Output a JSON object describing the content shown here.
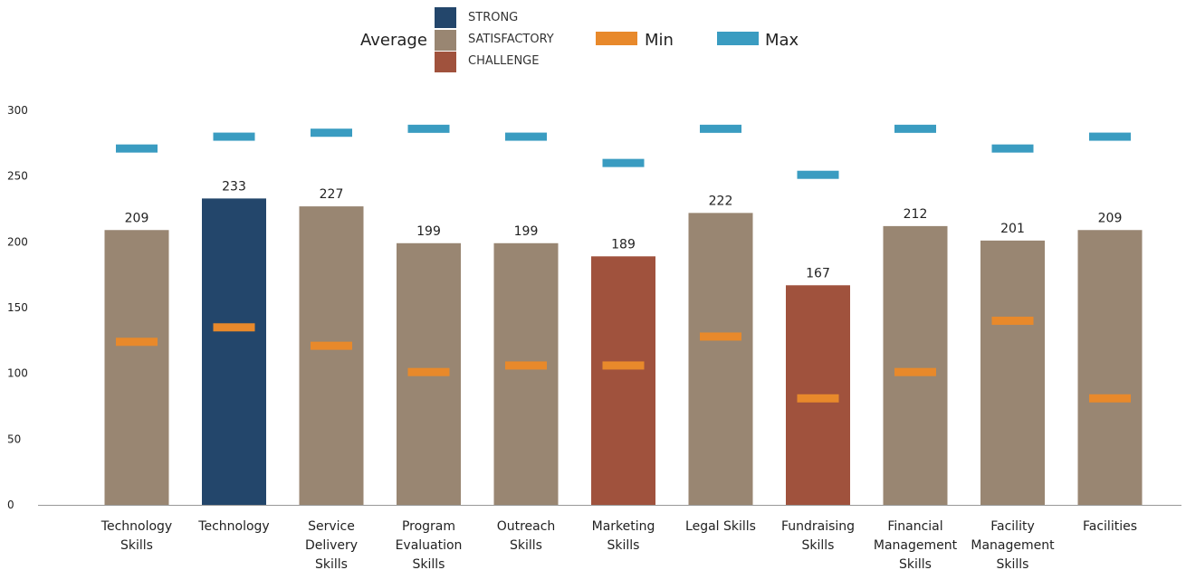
{
  "legend": {
    "average_label": "Average",
    "strong_label": "STRONG",
    "satisfactory_label": "SATISFACTORY",
    "challenge_label": "CHALLENGE",
    "min_label": "Min",
    "max_label": "Max"
  },
  "colors": {
    "strong": "#23466b",
    "satisfactory": "#998672",
    "challenge": "#a0523d",
    "min": "#e8892b",
    "max": "#3a9cc1",
    "axis": "#999999"
  },
  "chart_data": {
    "type": "bar",
    "title": "",
    "xlabel": "",
    "ylabel": "",
    "ylim": [
      0,
      300
    ],
    "yticks": [
      0,
      50,
      100,
      150,
      200,
      250,
      300
    ],
    "grid": false,
    "legend_position": "top",
    "categories": [
      "Technology Skills",
      "Technology",
      "Service Delivery Skills",
      "Program Evaluation Skills",
      "Outreach Skills",
      "Marketing Skills",
      "Legal Skills",
      "Fundraising Skills",
      "Financial Management Skills",
      "Facility Management Skills",
      "Facilities"
    ],
    "category_label_lines": [
      [
        "Technology",
        "Skills"
      ],
      [
        "Technology"
      ],
      [
        "Service",
        "Delivery",
        "Skills"
      ],
      [
        "Program",
        "Evaluation",
        "Skills"
      ],
      [
        "Outreach",
        "Skills"
      ],
      [
        "Marketing",
        "Skills"
      ],
      [
        "Legal Skills"
      ],
      [
        "Fundraising",
        "Skills"
      ],
      [
        "Financial",
        "Management",
        "Skills"
      ],
      [
        "Facility",
        "Management",
        "Skills"
      ],
      [
        "Facilities"
      ]
    ],
    "series": [
      {
        "name": "Average",
        "values": [
          209,
          233,
          227,
          199,
          199,
          189,
          222,
          167,
          212,
          201,
          209
        ]
      },
      {
        "name": "Min",
        "values": [
          124,
          135,
          121,
          101,
          106,
          106,
          128,
          81,
          101,
          140,
          81
        ]
      },
      {
        "name": "Max",
        "values": [
          271,
          280,
          283,
          286,
          280,
          260,
          286,
          251,
          286,
          271,
          280
        ]
      }
    ],
    "ratings": [
      "satisfactory",
      "strong",
      "satisfactory",
      "satisfactory",
      "satisfactory",
      "challenge",
      "satisfactory",
      "challenge",
      "satisfactory",
      "satisfactory",
      "satisfactory"
    ]
  }
}
